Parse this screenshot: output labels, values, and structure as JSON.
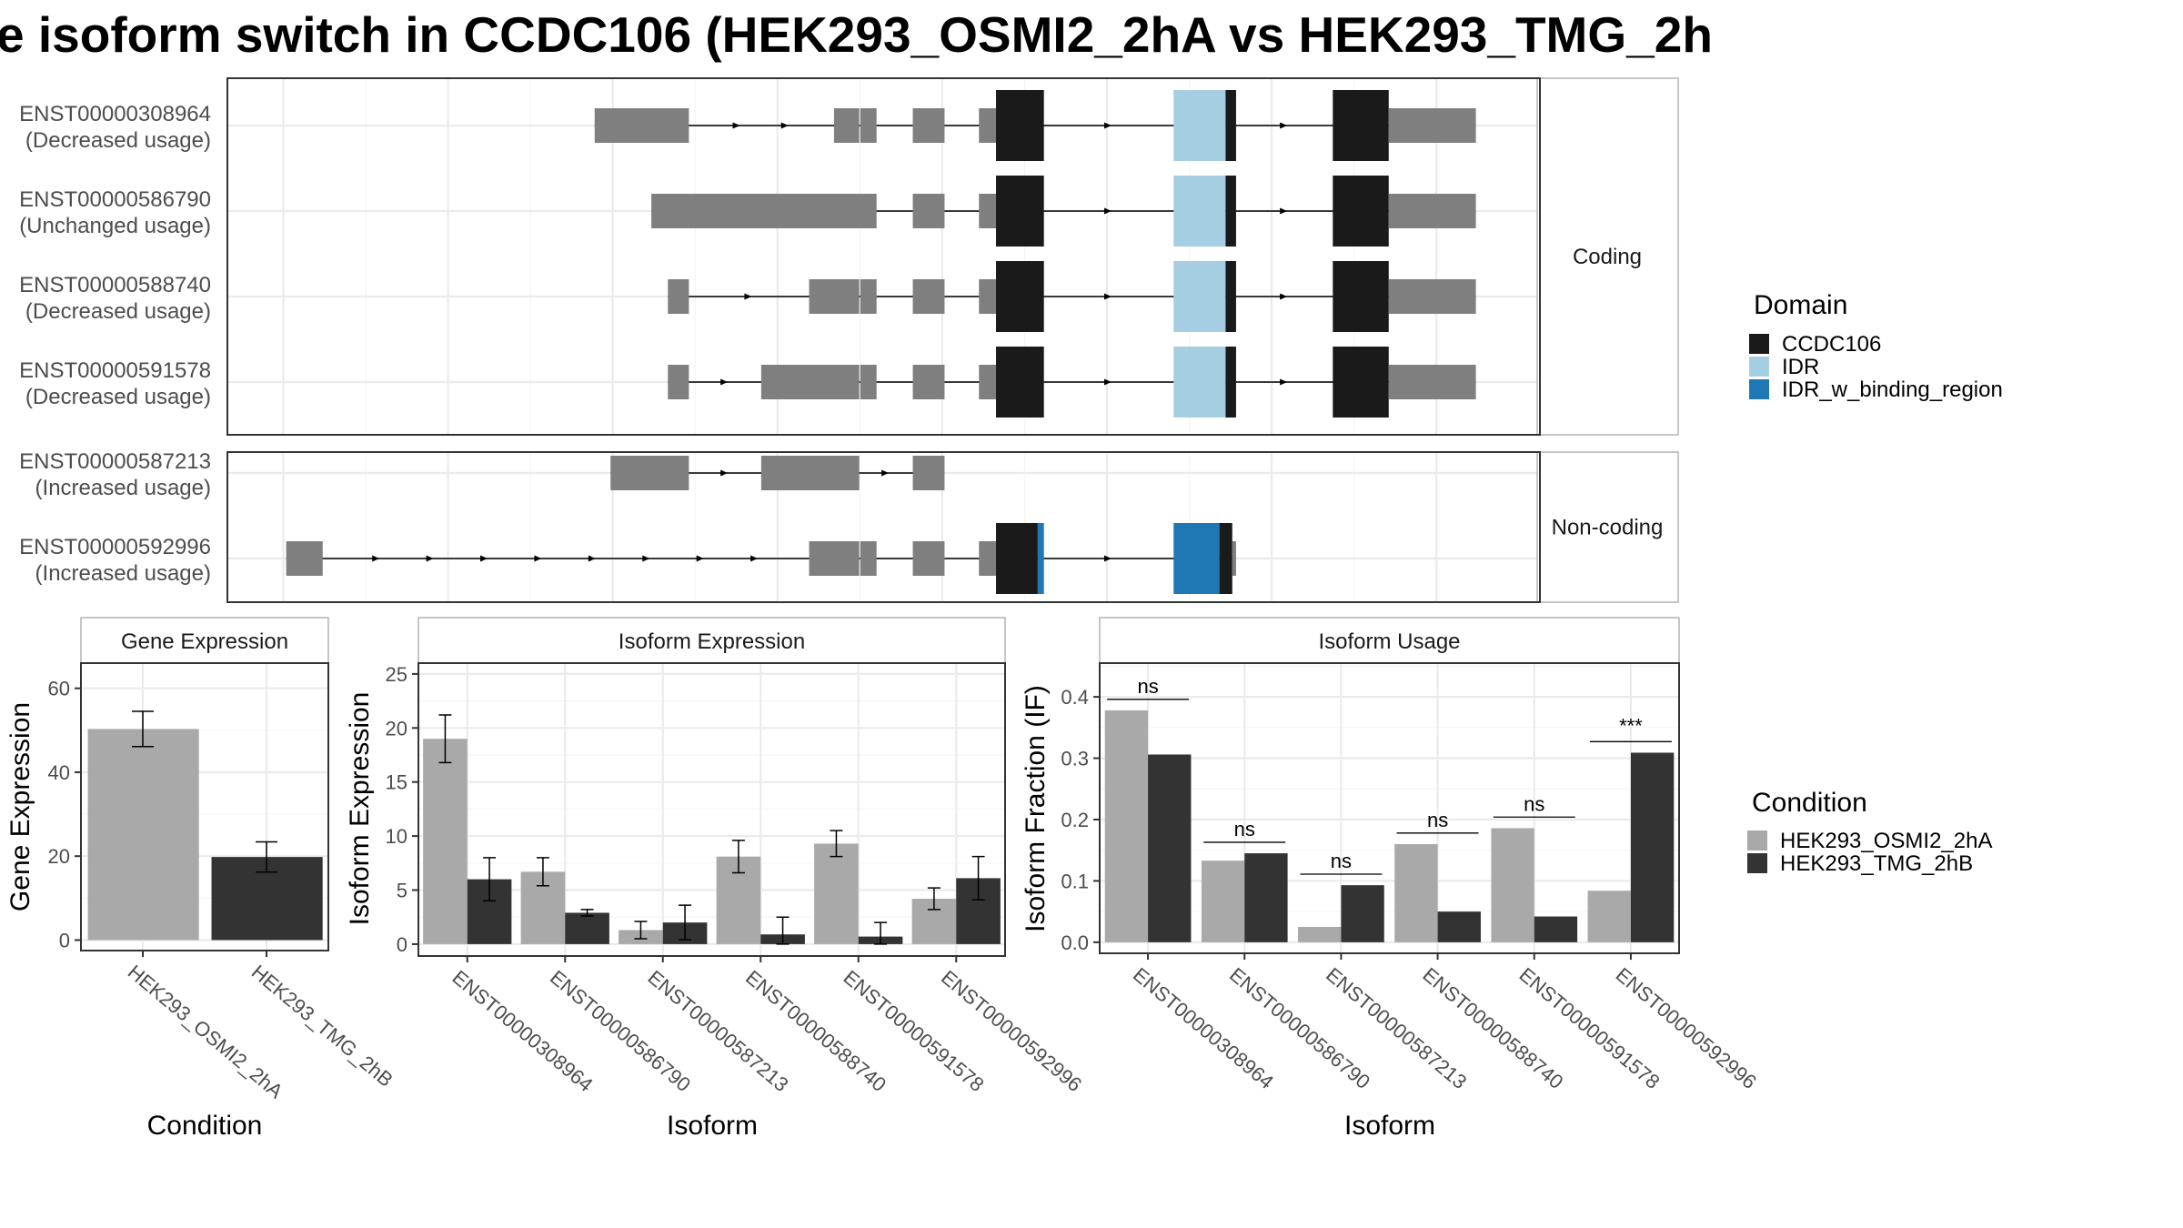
{
  "title": "e isoform switch in CCDC106 (HEK293_OSMI2_2hA vs HEK293_TMG_2h",
  "colors": {
    "cond_a": "#a9a9a9",
    "cond_b": "#333333",
    "exon_noncoding": "#7f7f7f",
    "CCDC106": "#1a1a1a",
    "IDR": "#a6cee3",
    "IDR_w_binding_region": "#1f78b4"
  },
  "chart_data": [
    {
      "type": "transcript-structure",
      "facets": [
        {
          "label": "Coding",
          "transcripts": [
            {
              "id": "ENST00000308964",
              "usage": "(Decreased usage)",
              "exons": [
                [
                  0.2798,
                  0.3516,
                  "n"
                ],
                [
                  0.4622,
                  0.4814,
                  "n"
                ],
                [
                  0.4822,
                  0.4946,
                  "n"
                ],
                [
                  0.5222,
                  0.5464,
                  "n"
                ],
                [
                  0.5726,
                  0.5856,
                  "n"
                ],
                [
                  0.5856,
                  0.6221,
                  "CCDC106"
                ],
                [
                  0.7209,
                  0.7605,
                  "IDR"
                ],
                [
                  0.7605,
                  0.7685,
                  "CCDC106"
                ],
                [
                  0.8422,
                  0.8848,
                  "CCDC106"
                ],
                [
                  0.8848,
                  0.9512,
                  "n"
                ]
              ]
            },
            {
              "id": "ENST00000586790",
              "usage": "(Unchanged usage)",
              "exons": [
                [
                  0.323,
                  0.4946,
                  "n"
                ],
                [
                  0.5222,
                  0.5464,
                  "n"
                ],
                [
                  0.5726,
                  0.5856,
                  "n"
                ],
                [
                  0.5856,
                  0.6221,
                  "CCDC106"
                ],
                [
                  0.7209,
                  0.7605,
                  "IDR"
                ],
                [
                  0.7605,
                  0.7685,
                  "CCDC106"
                ],
                [
                  0.8422,
                  0.8848,
                  "CCDC106"
                ],
                [
                  0.8848,
                  0.9512,
                  "n"
                ]
              ]
            },
            {
              "id": "ENST00000588740",
              "usage": "(Decreased usage)",
              "exons": [
                [
                  0.3356,
                  0.3516,
                  "n"
                ],
                [
                  0.4432,
                  0.4814,
                  "n"
                ],
                [
                  0.4822,
                  0.4946,
                  "n"
                ],
                [
                  0.5222,
                  0.5464,
                  "n"
                ],
                [
                  0.5726,
                  0.5856,
                  "n"
                ],
                [
                  0.5856,
                  0.6221,
                  "CCDC106"
                ],
                [
                  0.7209,
                  0.7605,
                  "IDR"
                ],
                [
                  0.7605,
                  0.7685,
                  "CCDC106"
                ],
                [
                  0.8422,
                  0.8848,
                  "CCDC106"
                ],
                [
                  0.8848,
                  0.9512,
                  "n"
                ]
              ]
            },
            {
              "id": "ENST00000591578",
              "usage": "(Decreased usage)",
              "exons": [
                [
                  0.3356,
                  0.3516,
                  "n"
                ],
                [
                  0.4067,
                  0.4814,
                  "n"
                ],
                [
                  0.4822,
                  0.4946,
                  "n"
                ],
                [
                  0.5222,
                  0.5464,
                  "n"
                ],
                [
                  0.5726,
                  0.5856,
                  "n"
                ],
                [
                  0.5856,
                  0.6221,
                  "CCDC106"
                ],
                [
                  0.7209,
                  0.7605,
                  "IDR"
                ],
                [
                  0.7605,
                  0.7685,
                  "CCDC106"
                ],
                [
                  0.8422,
                  0.8848,
                  "CCDC106"
                ],
                [
                  0.8848,
                  0.9512,
                  "n"
                ]
              ]
            }
          ]
        },
        {
          "label": "Non-coding",
          "transcripts": [
            {
              "id": "ENST00000587213",
              "usage": "(Increased usage)",
              "exons": [
                [
                  0.2919,
                  0.3516,
                  "n"
                ],
                [
                  0.4067,
                  0.4814,
                  "n"
                ],
                [
                  0.5222,
                  0.5464,
                  "n"
                ]
              ]
            },
            {
              "id": "ENST00000592996",
              "usage": "(Increased usage)",
              "exons": [
                [
                  0.0448,
                  0.0726,
                  "n"
                ],
                [
                  0.4432,
                  0.4814,
                  "n"
                ],
                [
                  0.4822,
                  0.4946,
                  "n"
                ],
                [
                  0.5222,
                  0.5464,
                  "n"
                ],
                [
                  0.5726,
                  0.5856,
                  "n"
                ],
                [
                  0.5856,
                  0.6174,
                  "CCDC106"
                ],
                [
                  0.6174,
                  0.6221,
                  "IDR_w_binding_region"
                ],
                [
                  0.7209,
                  0.7558,
                  "IDR_w_binding_region"
                ],
                [
                  0.7558,
                  0.7656,
                  "CCDC106"
                ],
                [
                  0.7656,
                  0.7685,
                  "n"
                ]
              ]
            }
          ]
        }
      ]
    },
    {
      "type": "bar",
      "title": "Gene Expression",
      "xlabel": "Condition",
      "ylabel": "Gene Expression",
      "categories": [
        "HEK293_OSMI2_2hA",
        "HEK293_TMG_2hB"
      ],
      "values": [
        50.3,
        19.8
      ],
      "errors": [
        [
          46.1,
          54.5
        ],
        [
          16.2,
          23.4
        ]
      ],
      "ylim": [
        -2.5,
        66
      ],
      "yticks": [
        0,
        20,
        40,
        60
      ]
    },
    {
      "type": "bar",
      "title": "Isoform Expression",
      "xlabel": "Isoform",
      "ylabel": "Isoform Expression",
      "categories": [
        "ENST00000308964",
        "ENST00000586790",
        "ENST00000587213",
        "ENST00000588740",
        "ENST00000591578",
        "ENST00000592996"
      ],
      "series": [
        {
          "name": "HEK293_OSMI2_2hA",
          "values": [
            19.0,
            6.7,
            1.3,
            8.1,
            9.3,
            4.2
          ],
          "errors": [
            [
              16.8,
              21.2
            ],
            [
              5.4,
              8.0
            ],
            [
              0.5,
              2.1
            ],
            [
              6.6,
              9.6
            ],
            [
              8.1,
              10.5
            ],
            [
              3.2,
              5.2
            ]
          ]
        },
        {
          "name": "HEK293_TMG_2hB",
          "values": [
            6.0,
            2.9,
            2.0,
            0.9,
            0.7,
            6.1
          ],
          "errors": [
            [
              4.0,
              8.0
            ],
            [
              2.6,
              3.2
            ],
            [
              0.4,
              3.6
            ],
            [
              0.0,
              2.5
            ],
            [
              0.0,
              2.0
            ],
            [
              4.1,
              8.1
            ]
          ]
        }
      ],
      "ylim": [
        -1.1,
        26
      ],
      "yticks": [
        0,
        5,
        10,
        15,
        20,
        25
      ]
    },
    {
      "type": "bar",
      "title": "Isoform Usage",
      "xlabel": "Isoform",
      "ylabel": "Isoform Fraction (IF)",
      "categories": [
        "ENST00000308964",
        "ENST00000586790",
        "ENST00000587213",
        "ENST00000588740",
        "ENST00000591578",
        "ENST00000592996"
      ],
      "series": [
        {
          "name": "HEK293_OSMI2_2hA",
          "values": [
            0.378,
            0.133,
            0.025,
            0.16,
            0.186,
            0.084
          ]
        },
        {
          "name": "HEK293_TMG_2hB",
          "values": [
            0.306,
            0.145,
            0.093,
            0.05,
            0.042,
            0.309
          ]
        }
      ],
      "significance": [
        "ns",
        "ns",
        "ns",
        "ns",
        "ns",
        "***"
      ],
      "ylim": [
        -0.018,
        0.455
      ],
      "yticks": [
        0.0,
        0.1,
        0.2,
        0.3,
        0.4
      ],
      "ytick_labels": [
        "0.0",
        "0.1",
        "0.2",
        "0.3",
        "0.4"
      ]
    }
  ],
  "legends": {
    "domain": {
      "title": "Domain",
      "items": [
        "CCDC106",
        "IDR",
        "IDR_w_binding_region"
      ]
    },
    "condition": {
      "title": "Condition",
      "items": [
        "HEK293_OSMI2_2hA",
        "HEK293_TMG_2hB"
      ]
    }
  }
}
